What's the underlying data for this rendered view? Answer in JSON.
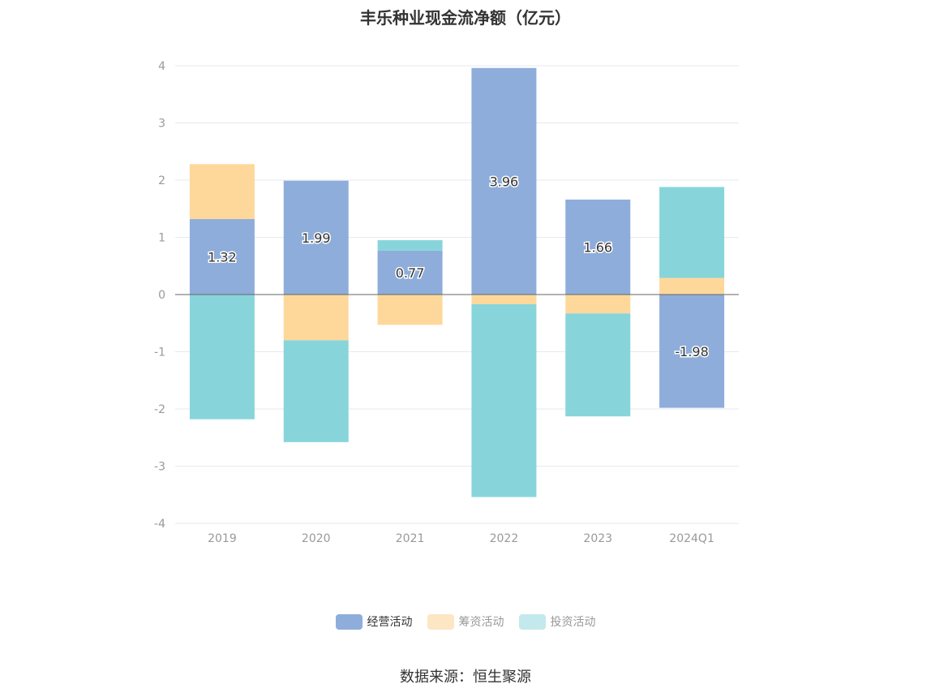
{
  "chart_data": {
    "type": "bar",
    "stacked": true,
    "title": "丰乐种业现金流净额（亿元）",
    "categories": [
      "2019",
      "2020",
      "2021",
      "2022",
      "2023",
      "2024Q1"
    ],
    "series": [
      {
        "name": "经营活动",
        "color": "#8eadda",
        "values": [
          1.32,
          1.99,
          0.77,
          3.96,
          1.66,
          -1.98
        ],
        "labels": [
          "1.32",
          "1.99",
          "0.77",
          "3.96",
          "1.66",
          "-1.98"
        ]
      },
      {
        "name": "筹资活动",
        "color": "#fed89b",
        "values": [
          0.96,
          -0.8,
          -0.53,
          -0.17,
          -0.33,
          0.29
        ]
      },
      {
        "name": "投资活动",
        "color": "#87d5db",
        "values": [
          -2.18,
          -1.78,
          0.18,
          -3.37,
          -1.8,
          1.59
        ]
      }
    ],
    "ylim": [
      -4,
      4
    ],
    "yticks": [
      4,
      3,
      2,
      1,
      0,
      -1,
      -2,
      -3,
      -4
    ],
    "legend_position": "bottom",
    "legend_swatch_colors": [
      "#8eadda",
      "#fde6c3",
      "#c3e9ec"
    ],
    "grid": true
  },
  "source": "数据来源：恒生聚源"
}
